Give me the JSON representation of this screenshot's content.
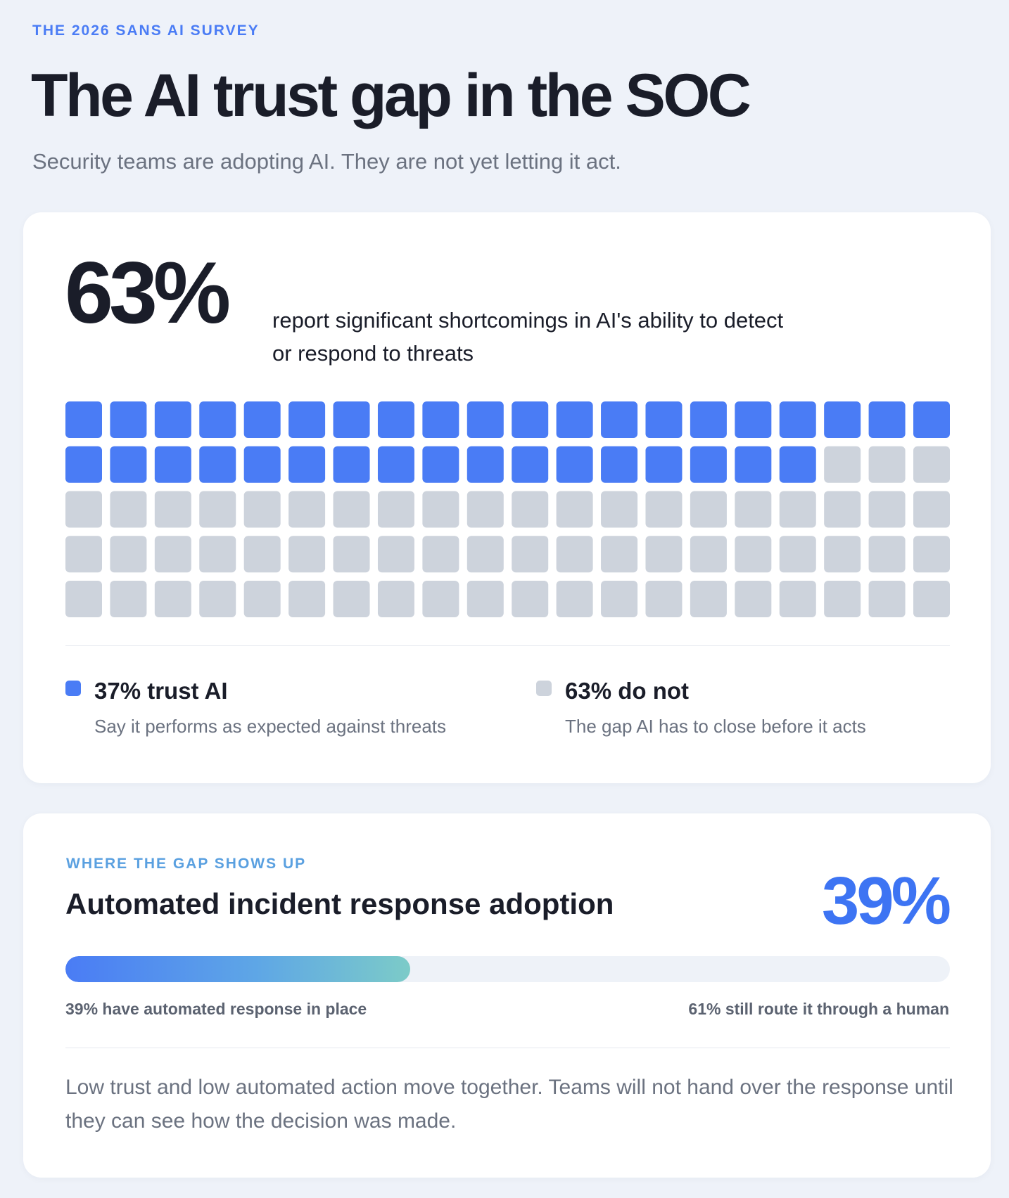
{
  "header": {
    "eyebrow": "THE 2026 SANS AI SURVEY",
    "title": "The AI trust gap in the SOC",
    "subtitle": "Security teams are adopting AI. They are not yet letting it act."
  },
  "trust_card": {
    "big_stat": "63%",
    "description": "report significant shortcomings in AI's ability to detect or respond to threats",
    "legend": [
      {
        "headline": "37% trust AI",
        "sub": "Say it performs as expected against threats",
        "color": "#4a7cf5"
      },
      {
        "headline": "63% do not",
        "sub": "The gap AI has to close before it acts",
        "color": "#cdd3dc"
      }
    ]
  },
  "adoption_card": {
    "eyebrow": "WHERE THE GAP SHOWS UP",
    "title": "Automated incident response adoption",
    "big_stat": "39%",
    "bar_left_label": "39% have automated response in place",
    "bar_right_label": "61% still route it through a human",
    "footnote": "Low trust and low automated action move together. Teams will not hand over the response until they can see how the decision was made."
  },
  "chart_data": [
    {
      "type": "waffle",
      "rows": 5,
      "columns": 20,
      "series": [
        {
          "name": "37% trust AI",
          "value": 37,
          "color": "#4a7cf5"
        },
        {
          "name": "63% do not",
          "value": 63,
          "color": "#cdd3dc"
        }
      ]
    },
    {
      "type": "bar",
      "categories": [
        "Automated incident response adoption"
      ],
      "values": [
        39
      ],
      "ylim": [
        0,
        100
      ]
    }
  ]
}
